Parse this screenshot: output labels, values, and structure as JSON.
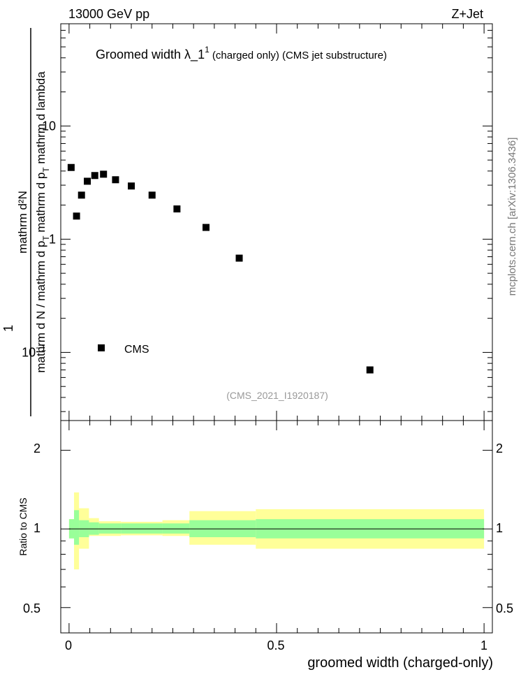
{
  "header": {
    "left": "13000 GeV pp",
    "right": "Z+Jet"
  },
  "plot_title": {
    "main": "Groomed width  λ_1",
    "sup": "1",
    "sub": " (charged only) (CMS jet substructure)"
  },
  "y_axis_label": {
    "numerator": "mathrm d²N",
    "denominator_parts": [
      "mathrm d N",
      " / mathrm d p",
      "T",
      " mathrm d p",
      "T",
      " mathrm d lambda"
    ],
    "left_factor": "1"
  },
  "watermark": "(CMS_2021_I1920187)",
  "side_label": "mcplots.cern.ch [arXiv:1306.3436]",
  "legend": {
    "label": "CMS"
  },
  "ratio_panel": {
    "ylabel": "Ratio to CMS",
    "yticks": [
      "0.5",
      "1",
      "2"
    ]
  },
  "x_axis": {
    "label": "groomed width (charged-only)",
    "ticks": [
      "0",
      "0.5",
      "1"
    ]
  },
  "chart_data": {
    "type": "scatter",
    "xlim": [
      -0.02,
      1.02
    ],
    "ylim_log": [
      0.025,
      80
    ],
    "yscale": "log",
    "main_yticks": [
      {
        "value": 10,
        "label": "10"
      },
      {
        "value": 1,
        "label": "1"
      },
      {
        "value": 0.1,
        "label": "10",
        "exp": "−1"
      }
    ],
    "series": [
      {
        "name": "CMS",
        "points": [
          {
            "x": 0.005,
            "y": 4.3
          },
          {
            "x": 0.018,
            "y": 1.6
          },
          {
            "x": 0.03,
            "y": 2.45
          },
          {
            "x": 0.044,
            "y": 3.25
          },
          {
            "x": 0.062,
            "y": 3.65
          },
          {
            "x": 0.083,
            "y": 3.75
          },
          {
            "x": 0.112,
            "y": 3.35
          },
          {
            "x": 0.15,
            "y": 2.95
          },
          {
            "x": 0.2,
            "y": 2.45
          },
          {
            "x": 0.26,
            "y": 1.85
          },
          {
            "x": 0.33,
            "y": 1.27
          },
          {
            "x": 0.41,
            "y": 0.68
          },
          {
            "x": 0.725,
            "y": 0.07
          }
        ]
      }
    ],
    "ratio": {
      "ylim_log": [
        0.4,
        2.6
      ],
      "bands": [
        {
          "x0": 0.0,
          "x1": 0.012,
          "in_lo": 0.92,
          "in_hi": 1.09,
          "out_lo": 0.92,
          "out_hi": 1.09
        },
        {
          "x0": 0.012,
          "x1": 0.024,
          "in_lo": 0.87,
          "in_hi": 1.18,
          "out_lo": 0.7,
          "out_hi": 1.38
        },
        {
          "x0": 0.024,
          "x1": 0.048,
          "in_lo": 0.93,
          "in_hi": 1.08,
          "out_lo": 0.84,
          "out_hi": 1.2
        },
        {
          "x0": 0.048,
          "x1": 0.072,
          "in_lo": 0.95,
          "in_hi": 1.06,
          "out_lo": 0.94,
          "out_hi": 1.1
        },
        {
          "x0": 0.072,
          "x1": 0.125,
          "in_lo": 0.96,
          "in_hi": 1.05,
          "out_lo": 0.94,
          "out_hi": 1.07
        },
        {
          "x0": 0.125,
          "x1": 0.225,
          "in_lo": 0.96,
          "in_hi": 1.05,
          "out_lo": 0.945,
          "out_hi": 1.065
        },
        {
          "x0": 0.225,
          "x1": 0.29,
          "in_lo": 0.96,
          "in_hi": 1.05,
          "out_lo": 0.94,
          "out_hi": 1.08
        },
        {
          "x0": 0.29,
          "x1": 0.45,
          "in_lo": 0.93,
          "in_hi": 1.08,
          "out_lo": 0.87,
          "out_hi": 1.17
        },
        {
          "x0": 0.45,
          "x1": 1.0,
          "in_lo": 0.92,
          "in_hi": 1.09,
          "out_lo": 0.84,
          "out_hi": 1.19
        }
      ]
    }
  }
}
